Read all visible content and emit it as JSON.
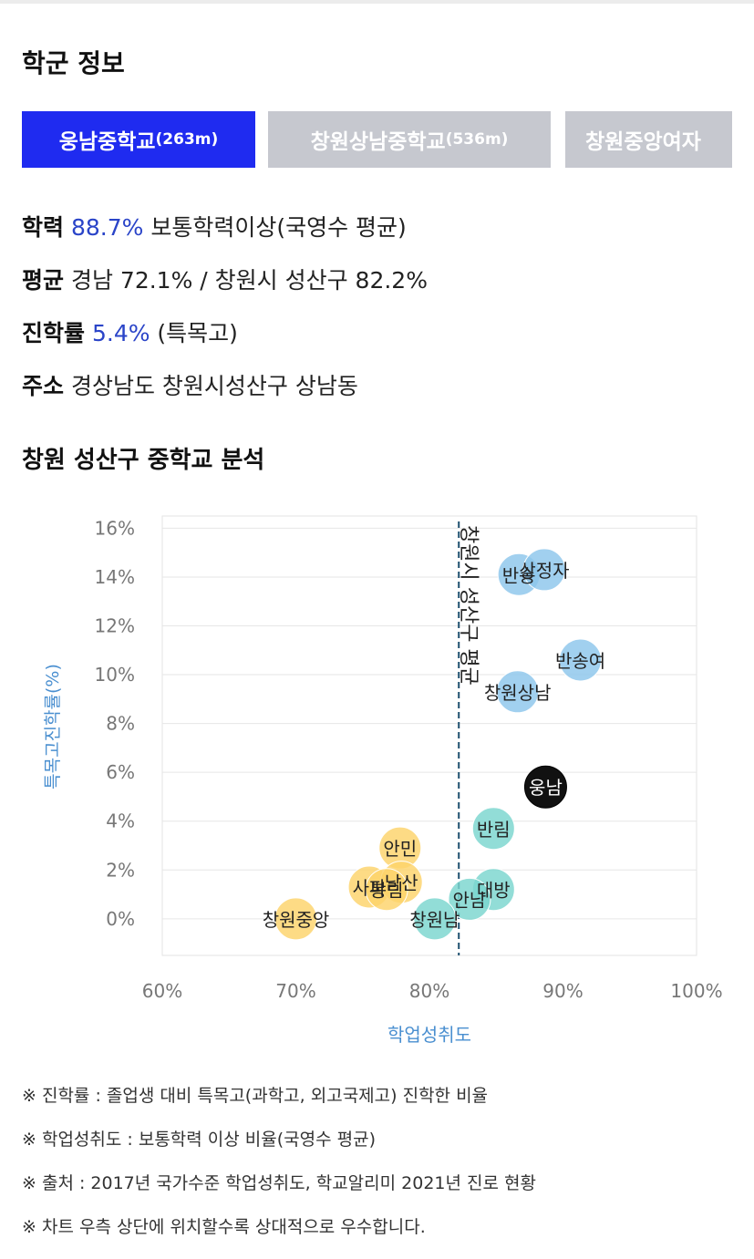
{
  "section_title": "학군 정보",
  "tabs": [
    {
      "name": "웅남중학교",
      "distance": "(263m)",
      "active": true
    },
    {
      "name": "창원상남중학교",
      "distance": "(536m)",
      "active": false
    },
    {
      "name": "창원중앙여자",
      "distance": "",
      "active": false
    }
  ],
  "info": {
    "academic": {
      "label": "학력",
      "value": "88.7%",
      "text": " 보통학력이상(국영수 평균)"
    },
    "average": {
      "label": "평균",
      "text": " 경남 72.1% / 창원시 성산구 82.2%"
    },
    "advancement": {
      "label": "진학률",
      "value": "5.4%",
      "text": " (특목고)"
    },
    "address": {
      "label": "주소",
      "text": " 경상남도 창원시성산구 상남동"
    }
  },
  "chart_title": "창원 성산구 중학교 분석",
  "chart_data": {
    "type": "scatter",
    "xlabel": "학업성취도",
    "ylabel": "특목고진학률(%)",
    "xlim": [
      60,
      100
    ],
    "ylim": [
      -1.5,
      16.5
    ],
    "xticks": [
      "60%",
      "70%",
      "80%",
      "90%",
      "100%"
    ],
    "yticks": [
      "0%",
      "2%",
      "4%",
      "6%",
      "8%",
      "10%",
      "12%",
      "14%",
      "16%"
    ],
    "grid": true,
    "reference_line": {
      "x": 82.2,
      "label": "창원시 성산구 평균"
    },
    "colors": {
      "blue": "#8cc6ec",
      "teal": "#7ad6ce",
      "yellow": "#fcd36a",
      "black": "#111111",
      "ref_line": "#1d4f6e",
      "grid": "#e6e6e6",
      "axis_label": "#4a8fd0"
    },
    "points": [
      {
        "label": "반송",
        "x": 86.7,
        "y": 14.1,
        "color": "blue"
      },
      {
        "label": "상정자",
        "x": 88.6,
        "y": 14.3,
        "color": "blue"
      },
      {
        "label": "반송여",
        "x": 91.3,
        "y": 10.6,
        "color": "blue"
      },
      {
        "label": "창원상남",
        "x": 86.6,
        "y": 9.3,
        "color": "blue"
      },
      {
        "label": "웅남",
        "x": 88.7,
        "y": 5.4,
        "color": "black"
      },
      {
        "label": "반림",
        "x": 84.8,
        "y": 3.7,
        "color": "teal"
      },
      {
        "label": "대방",
        "x": 84.8,
        "y": 1.2,
        "color": "teal"
      },
      {
        "label": "안남",
        "x": 83.0,
        "y": 0.8,
        "color": "teal"
      },
      {
        "label": "창원남",
        "x": 80.4,
        "y": 0.0,
        "color": "teal"
      },
      {
        "label": "안민",
        "x": 77.8,
        "y": 2.9,
        "color": "yellow"
      },
      {
        "label": "사파",
        "x": 75.5,
        "y": 1.3,
        "color": "yellow"
      },
      {
        "label": "남산",
        "x": 77.9,
        "y": 1.5,
        "color": "yellow"
      },
      {
        "label": "봉림",
        "x": 76.8,
        "y": 1.2,
        "color": "yellow"
      },
      {
        "label": "창원중앙",
        "x": 70.0,
        "y": 0.0,
        "color": "yellow"
      }
    ]
  },
  "notes": [
    "※ 진학률 : 졸업생 대비 특목고(과학고, 외고국제고) 진학한 비율",
    "※ 학업성취도 : 보통학력 이상 비율(국영수 평균)",
    "※ 출처 : 2017년 국가수준 학업성취도, 학교알리미 2021년 진로 현황",
    "※ 차트 우측 상단에 위치할수록 상대적으로 우수합니다."
  ]
}
